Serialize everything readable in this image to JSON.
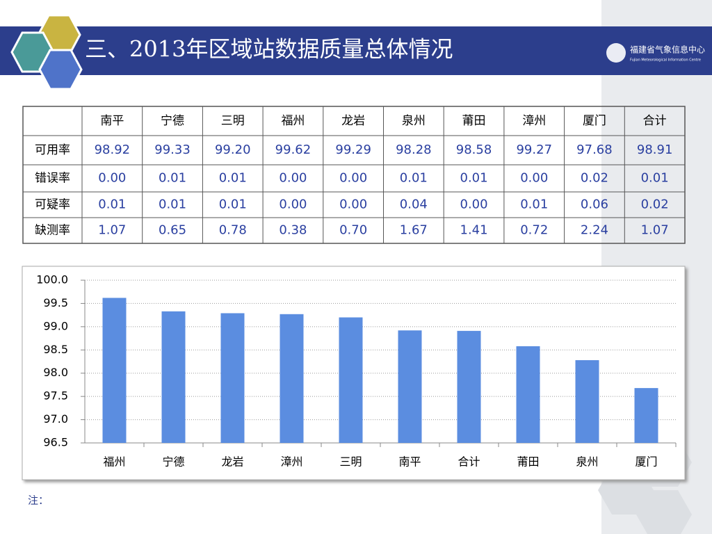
{
  "header": {
    "title": "三、2013年区域站数据质量总体情况",
    "logo": "福建省气象信息中心",
    "logo_sub": "Fujian Meteorological Information Centre"
  },
  "table": {
    "columns": [
      "南平",
      "宁德",
      "三明",
      "福州",
      "龙岩",
      "泉州",
      "莆田",
      "漳州",
      "厦门",
      "合计"
    ],
    "rows": [
      {
        "label": "可用率",
        "values": [
          "98.92",
          "99.33",
          "99.20",
          "99.62",
          "99.29",
          "98.28",
          "98.58",
          "99.27",
          "97.68",
          "98.91"
        ]
      },
      {
        "label": "错误率",
        "values": [
          "0.00",
          "0.01",
          "0.01",
          "0.00",
          "0.00",
          "0.01",
          "0.01",
          "0.00",
          "0.02",
          "0.01"
        ]
      },
      {
        "label": "可疑率",
        "values": [
          "0.01",
          "0.01",
          "0.01",
          "0.00",
          "0.00",
          "0.04",
          "0.00",
          "0.01",
          "0.06",
          "0.02"
        ]
      },
      {
        "label": "缺测率",
        "values": [
          "1.07",
          "0.65",
          "0.78",
          "0.38",
          "0.70",
          "1.67",
          "1.41",
          "0.72",
          "2.24",
          "1.07"
        ]
      }
    ]
  },
  "chart_data": {
    "type": "bar",
    "categories": [
      "福州",
      "宁德",
      "龙岩",
      "漳州",
      "三明",
      "南平",
      "合计",
      "莆田",
      "泉州",
      "厦门"
    ],
    "values": [
      99.62,
      99.33,
      99.29,
      99.27,
      99.2,
      98.92,
      98.91,
      98.58,
      98.28,
      97.68
    ],
    "color": "#5b8de0",
    "ylim": [
      96.5,
      100
    ],
    "yticks": [
      96.5,
      {
        "value": 97,
        "label": "97.0"
      },
      97.5,
      {
        "value": 98,
        "label": "98.0"
      },
      98.5,
      {
        "value": 99,
        "label": "99.0"
      },
      99.5,
      {
        "value": 100,
        "label": "100.0"
      }
    ],
    "grid": true
  },
  "note": "注："
}
